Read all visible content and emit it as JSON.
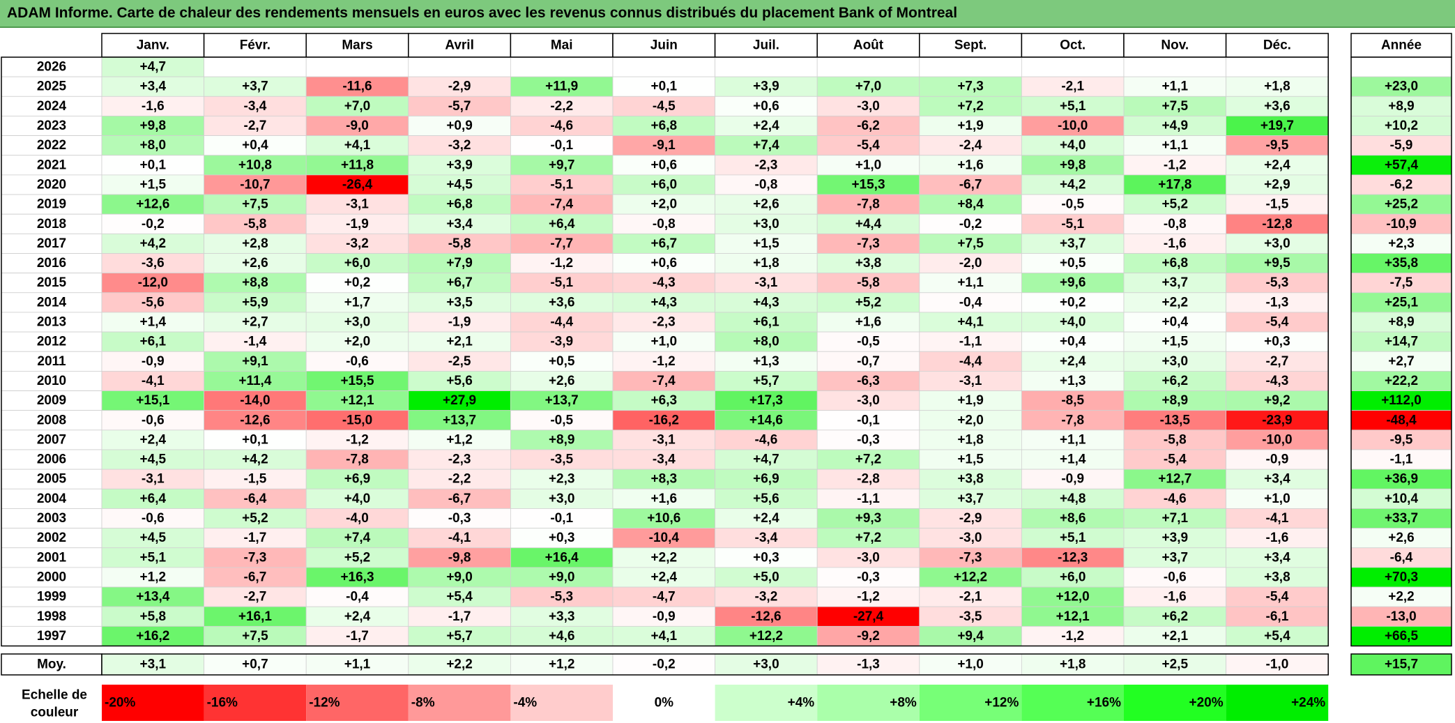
{
  "title": "ADAM Informe. Carte de chaleur des rendements mensuels en euros avec les revenus connus distribués du placement Bank of Montreal",
  "chart_data": {
    "type": "heatmap",
    "months": [
      "Janv.",
      "Févr.",
      "Mars",
      "Avril",
      "Mai",
      "Juin",
      "Juil.",
      "Août",
      "Sept.",
      "Oct.",
      "Nov.",
      "Déc."
    ],
    "year_column_label": "Année",
    "average_row_label": "Moy.",
    "rows": [
      {
        "year": "2026",
        "months": [
          "+4,7",
          "",
          "",
          "",
          "",
          "",
          "",
          "",
          "",
          "",
          "",
          ""
        ],
        "annual": ""
      },
      {
        "year": "2025",
        "months": [
          "+3,4",
          "+3,7",
          "-11,6",
          "-2,9",
          "+11,9",
          "+0,1",
          "+3,9",
          "+7,0",
          "+7,3",
          "-2,1",
          "+1,1",
          "+1,8"
        ],
        "annual": "+23,0"
      },
      {
        "year": "2024",
        "months": [
          "-1,6",
          "-3,4",
          "+7,0",
          "-5,7",
          "-2,2",
          "-4,5",
          "+0,6",
          "-3,0",
          "+7,2",
          "+5,1",
          "+7,5",
          "+3,6"
        ],
        "annual": "+8,9"
      },
      {
        "year": "2023",
        "months": [
          "+9,8",
          "-2,7",
          "-9,0",
          "+0,9",
          "-4,6",
          "+6,8",
          "+2,4",
          "-6,2",
          "+1,9",
          "-10,0",
          "+4,9",
          "+19,7"
        ],
        "annual": "+10,2"
      },
      {
        "year": "2022",
        "months": [
          "+8,0",
          "+0,4",
          "+4,1",
          "-3,2",
          "-0,1",
          "-9,1",
          "+7,4",
          "-5,4",
          "-2,4",
          "+4,0",
          "+1,1",
          "-9,5"
        ],
        "annual": "-5,9"
      },
      {
        "year": "2021",
        "months": [
          "+0,1",
          "+10,8",
          "+11,8",
          "+3,9",
          "+9,7",
          "+0,6",
          "-2,3",
          "+1,0",
          "+1,6",
          "+9,8",
          "-1,2",
          "+2,4"
        ],
        "annual": "+57,4"
      },
      {
        "year": "2020",
        "months": [
          "+1,5",
          "-10,7",
          "-26,4",
          "+4,5",
          "-5,1",
          "+6,0",
          "-0,8",
          "+15,3",
          "-6,7",
          "+4,2",
          "+17,8",
          "+2,9"
        ],
        "annual": "-6,2"
      },
      {
        "year": "2019",
        "months": [
          "+12,6",
          "+7,5",
          "-3,1",
          "+6,8",
          "-7,4",
          "+2,0",
          "+2,6",
          "-7,8",
          "+8,4",
          "-0,5",
          "+5,2",
          "-1,5"
        ],
        "annual": "+25,2"
      },
      {
        "year": "2018",
        "months": [
          "-0,2",
          "-5,8",
          "-1,9",
          "+3,4",
          "+6,4",
          "-0,8",
          "+3,0",
          "+4,4",
          "-0,2",
          "-5,1",
          "-0,8",
          "-12,8"
        ],
        "annual": "-10,9"
      },
      {
        "year": "2017",
        "months": [
          "+4,2",
          "+2,8",
          "-3,2",
          "-5,8",
          "-7,7",
          "+6,7",
          "+1,5",
          "-7,3",
          "+7,5",
          "+3,7",
          "-1,6",
          "+3,0"
        ],
        "annual": "+2,3"
      },
      {
        "year": "2016",
        "months": [
          "-3,6",
          "+2,6",
          "+6,0",
          "+7,9",
          "-1,2",
          "+0,6",
          "+1,8",
          "+3,8",
          "-2,0",
          "+0,5",
          "+6,8",
          "+9,5"
        ],
        "annual": "+35,8"
      },
      {
        "year": "2015",
        "months": [
          "-12,0",
          "+8,8",
          "+0,2",
          "+6,7",
          "-5,1",
          "-4,3",
          "-3,1",
          "-5,8",
          "+1,1",
          "+9,6",
          "+3,7",
          "-5,3"
        ],
        "annual": "-7,5"
      },
      {
        "year": "2014",
        "months": [
          "-5,6",
          "+5,9",
          "+1,7",
          "+3,5",
          "+3,6",
          "+4,3",
          "+4,3",
          "+5,2",
          "-0,4",
          "+0,2",
          "+2,2",
          "-1,3"
        ],
        "annual": "+25,1"
      },
      {
        "year": "2013",
        "months": [
          "+1,4",
          "+2,7",
          "+3,0",
          "-1,9",
          "-4,4",
          "-2,3",
          "+6,1",
          "+1,6",
          "+4,1",
          "+4,0",
          "+0,4",
          "-5,4"
        ],
        "annual": "+8,9"
      },
      {
        "year": "2012",
        "months": [
          "+6,1",
          "-1,4",
          "+2,0",
          "+2,1",
          "-3,9",
          "+1,0",
          "+8,0",
          "-0,5",
          "-1,1",
          "+0,4",
          "+1,5",
          "+0,3"
        ],
        "annual": "+14,7"
      },
      {
        "year": "2011",
        "months": [
          "-0,9",
          "+9,1",
          "-0,6",
          "-2,5",
          "+0,5",
          "-1,2",
          "+1,3",
          "-0,7",
          "-4,4",
          "+2,4",
          "+3,0",
          "-2,7"
        ],
        "annual": "+2,7"
      },
      {
        "year": "2010",
        "months": [
          "-4,1",
          "+11,4",
          "+15,5",
          "+5,6",
          "+2,6",
          "-7,4",
          "+5,7",
          "-6,3",
          "-3,1",
          "+1,3",
          "+6,2",
          "-4,3"
        ],
        "annual": "+22,2"
      },
      {
        "year": "2009",
        "months": [
          "+15,1",
          "-14,0",
          "+12,1",
          "+27,9",
          "+13,7",
          "+6,3",
          "+17,3",
          "-3,0",
          "+1,9",
          "-8,5",
          "+8,9",
          "+9,2"
        ],
        "annual": "+112,0"
      },
      {
        "year": "2008",
        "months": [
          "-0,6",
          "-12,6",
          "-15,0",
          "+13,7",
          "-0,5",
          "-16,2",
          "+14,6",
          "-0,1",
          "+2,0",
          "-7,8",
          "-13,5",
          "-23,9"
        ],
        "annual": "-48,4"
      },
      {
        "year": "2007",
        "months": [
          "+2,4",
          "+0,1",
          "-1,2",
          "+1,2",
          "+8,9",
          "-3,1",
          "-4,6",
          "-0,3",
          "+1,8",
          "+1,1",
          "-5,8",
          "-10,0"
        ],
        "annual": "-9,5"
      },
      {
        "year": "2006",
        "months": [
          "+4,5",
          "+4,2",
          "-7,8",
          "-2,3",
          "-3,5",
          "-3,4",
          "+4,7",
          "+7,2",
          "+1,5",
          "+1,4",
          "-5,4",
          "-0,9"
        ],
        "annual": "-1,1"
      },
      {
        "year": "2005",
        "months": [
          "-3,1",
          "-1,5",
          "+6,9",
          "-2,2",
          "+2,3",
          "+8,3",
          "+6,9",
          "-2,8",
          "+3,8",
          "-0,9",
          "+12,7",
          "+3,4"
        ],
        "annual": "+36,9"
      },
      {
        "year": "2004",
        "months": [
          "+6,4",
          "-6,4",
          "+4,0",
          "-6,7",
          "+3,0",
          "+1,6",
          "+5,6",
          "-1,1",
          "+3,7",
          "+4,8",
          "-4,6",
          "+1,0"
        ],
        "annual": "+10,4"
      },
      {
        "year": "2003",
        "months": [
          "-0,6",
          "+5,2",
          "-4,0",
          "-0,3",
          "-0,1",
          "+10,6",
          "+2,4",
          "+9,3",
          "-2,9",
          "+8,6",
          "+7,1",
          "-4,1"
        ],
        "annual": "+33,7"
      },
      {
        "year": "2002",
        "months": [
          "+4,5",
          "-1,7",
          "+7,4",
          "-4,1",
          "+0,3",
          "-10,4",
          "-3,4",
          "+7,2",
          "-3,0",
          "+5,1",
          "+3,9",
          "-1,6"
        ],
        "annual": "+2,6"
      },
      {
        "year": "2001",
        "months": [
          "+5,1",
          "-7,3",
          "+5,2",
          "-9,8",
          "+16,4",
          "+2,2",
          "+0,3",
          "-3,0",
          "-7,3",
          "-12,3",
          "+3,7",
          "+3,4"
        ],
        "annual": "-6,4"
      },
      {
        "year": "2000",
        "months": [
          "+1,2",
          "-6,7",
          "+16,3",
          "+9,0",
          "+9,0",
          "+2,4",
          "+5,0",
          "-0,3",
          "+12,2",
          "+6,0",
          "-0,6",
          "+3,8"
        ],
        "annual": "+70,3"
      },
      {
        "year": "1999",
        "months": [
          "+13,4",
          "-2,7",
          "-0,4",
          "+5,4",
          "-5,3",
          "-4,7",
          "-3,2",
          "-1,2",
          "-2,1",
          "+12,0",
          "-1,6",
          "-5,4"
        ],
        "annual": "+2,2"
      },
      {
        "year": "1998",
        "months": [
          "+5,8",
          "+16,1",
          "+2,4",
          "-1,7",
          "+3,3",
          "-0,9",
          "-12,6",
          "-27,4",
          "-3,5",
          "+12,1",
          "+6,2",
          "-6,1"
        ],
        "annual": "-13,0"
      },
      {
        "year": "1997",
        "months": [
          "+16,2",
          "+7,5",
          "-1,7",
          "+5,7",
          "+4,6",
          "+4,1",
          "+12,2",
          "-9,2",
          "+9,4",
          "-1,2",
          "+2,1",
          "+5,4"
        ],
        "annual": "+66,5"
      }
    ],
    "average": {
      "months": [
        "+3,1",
        "+0,7",
        "+1,1",
        "+2,2",
        "+1,2",
        "-0,2",
        "+3,0",
        "-1,3",
        "+1,0",
        "+1,8",
        "+2,5",
        "-1,0"
      ],
      "annual": "+15,7"
    },
    "scale": {
      "label_line1": "Echelle de",
      "label_line2": "couleur",
      "steps": [
        "-20%",
        "-16%",
        "-12%",
        "-8%",
        "-4%",
        "0%",
        "+4%",
        "+8%",
        "+12%",
        "+16%",
        "+20%",
        "+24%"
      ],
      "colors": [
        "#ff0000",
        "#ff3333",
        "#ff6666",
        "#ff9999",
        "#ffcccc",
        "#ffffff",
        "#ccffcc",
        "#aaffaa",
        "#77ff77",
        "#55ff55",
        "#22ff22",
        "#00ee00"
      ]
    },
    "colors": {
      "negative_max": "#ff0000",
      "neutral": "#ffffff",
      "positive_max": "#00ee00",
      "title_bar": "#7dc97d"
    }
  }
}
